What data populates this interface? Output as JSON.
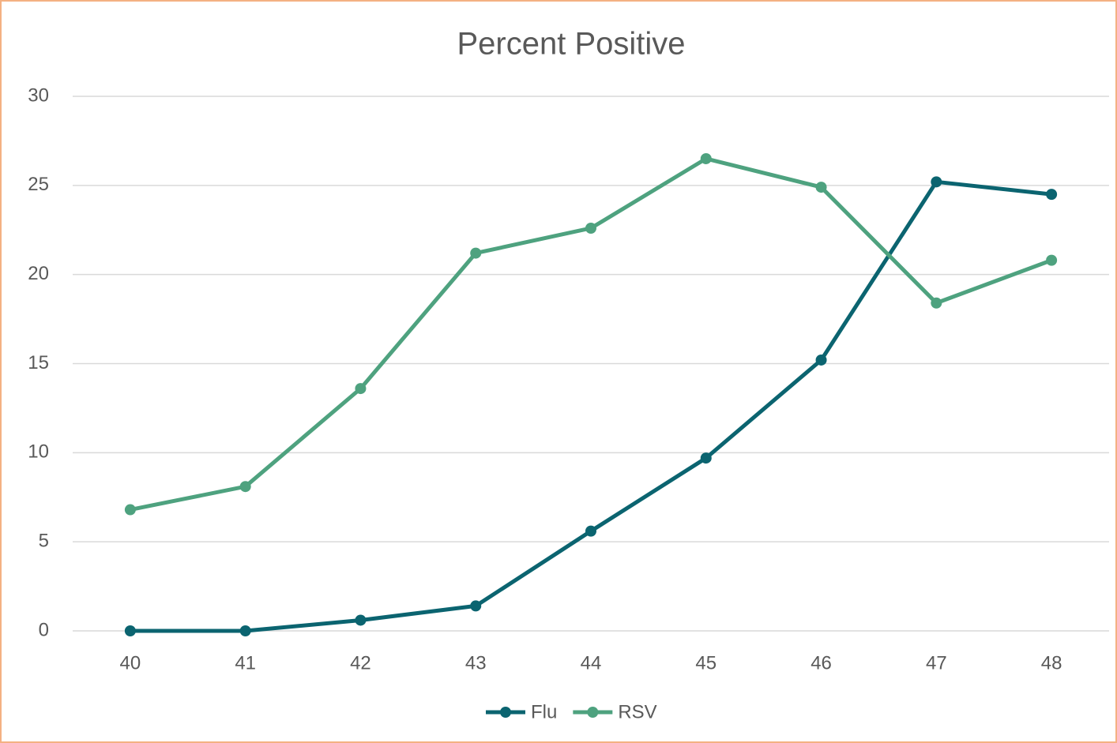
{
  "chart_data": {
    "type": "line",
    "title": "Percent Positive",
    "categories": [
      "40",
      "41",
      "42",
      "43",
      "44",
      "45",
      "46",
      "47",
      "48"
    ],
    "series": [
      {
        "name": "Flu",
        "color": "#0b6470",
        "values": [
          0,
          0,
          0.6,
          1.4,
          5.6,
          9.7,
          15.2,
          25.2,
          24.5
        ]
      },
      {
        "name": "RSV",
        "color": "#4ea27f",
        "values": [
          6.8,
          8.1,
          13.6,
          21.2,
          22.6,
          26.5,
          24.9,
          18.4,
          20.8
        ]
      }
    ],
    "ylim": [
      0,
      30
    ],
    "yticks": [
      0,
      5,
      10,
      15,
      20,
      25,
      30
    ],
    "grid": true,
    "legend": "bottom"
  }
}
